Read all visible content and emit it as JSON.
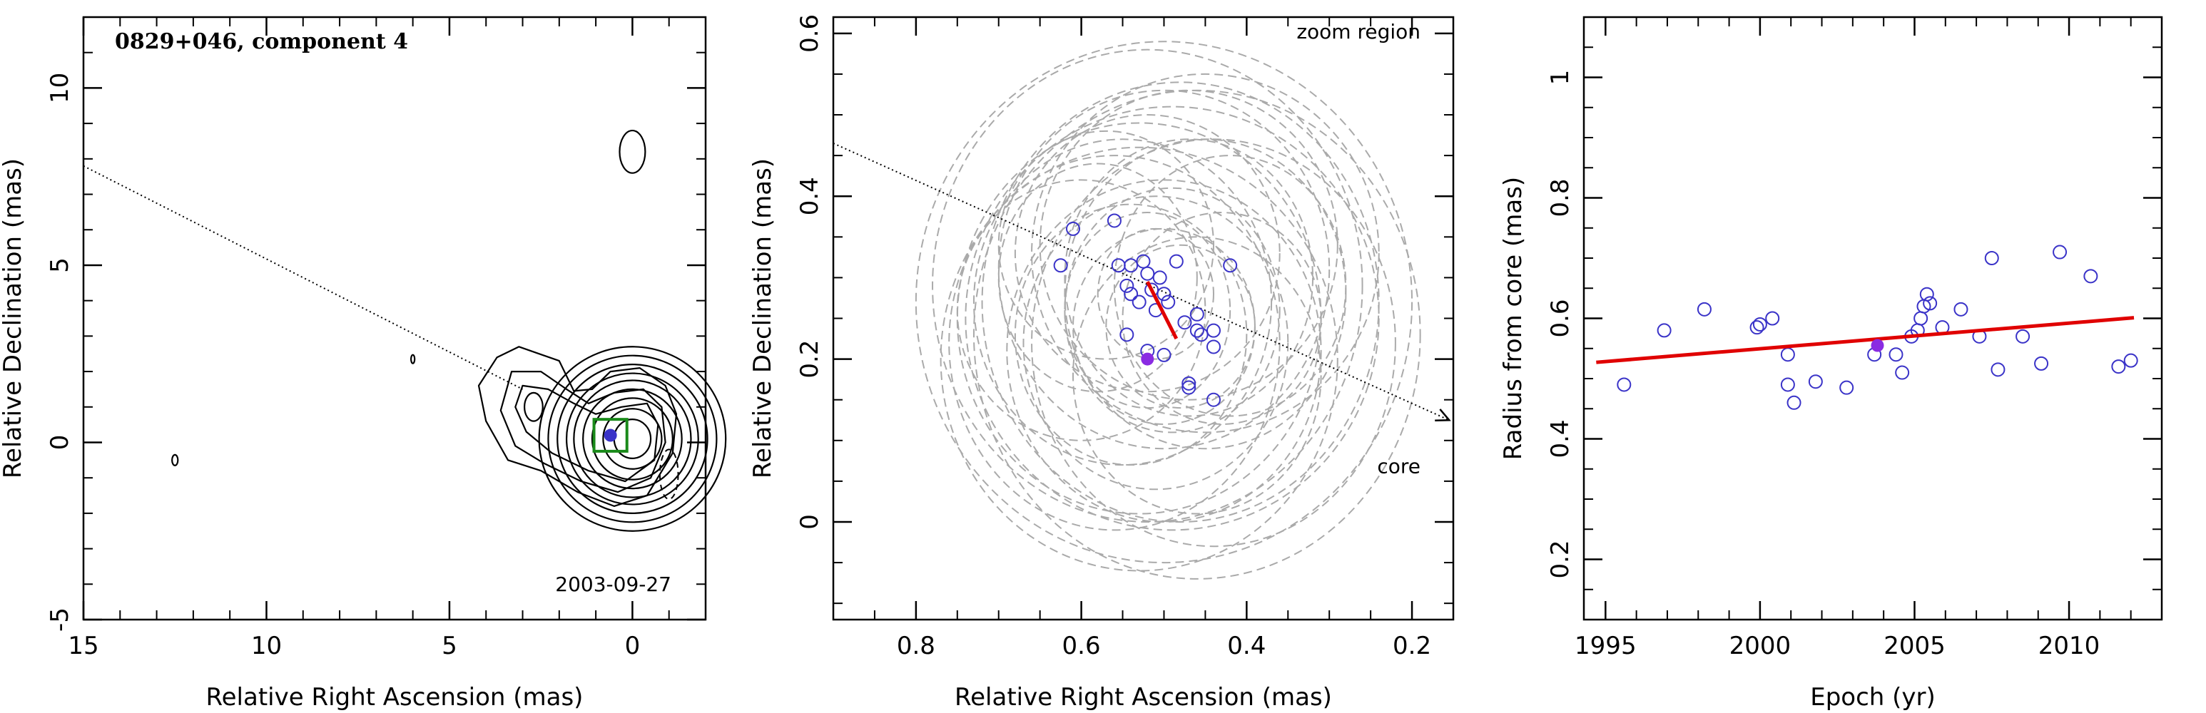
{
  "chart_data": [
    {
      "type": "contour",
      "title": "0829+046, component 4",
      "annotation": "2003-09-27",
      "xlabel": "Relative Right Ascension (mas)",
      "ylabel": "Relative Declination (mas)",
      "xlim": [
        15,
        -2
      ],
      "ylim": [
        -5,
        12
      ],
      "xticks": [
        15,
        10,
        5,
        0
      ],
      "yticks": [
        -5,
        0,
        5,
        10
      ],
      "contours": {
        "main": {
          "center": [
            0.0,
            0.1
          ],
          "levels": [
            [
              0.5,
              0.55
            ],
            [
              0.8,
              0.85
            ],
            [
              1.1,
              1.15
            ],
            [
              1.35,
              1.4
            ],
            [
              1.6,
              1.65
            ],
            [
              1.8,
              1.85
            ],
            [
              2.05,
              2.1
            ],
            [
              2.3,
              2.35
            ],
            [
              2.55,
              2.6
            ]
          ]
        },
        "extended": [
          [
            [
              3.7,
              2.4
            ],
            [
              3.1,
              2.7
            ],
            [
              2.0,
              2.3
            ],
            [
              1.6,
              1.45
            ],
            [
              1.1,
              1.5
            ],
            [
              0.6,
              2.0
            ],
            [
              -0.2,
              2.1
            ],
            [
              -0.9,
              1.6
            ],
            [
              -1.2,
              0.8
            ],
            [
              -1.1,
              -0.3
            ],
            [
              -0.4,
              -1.5
            ],
            [
              0.5,
              -1.8
            ],
            [
              1.5,
              -1.4
            ],
            [
              2.5,
              -0.8
            ],
            [
              3.4,
              -0.5
            ],
            [
              4.0,
              0.6
            ],
            [
              4.2,
              1.6
            ]
          ],
          [
            [
              3.3,
              2.0
            ],
            [
              2.5,
              2.0
            ],
            [
              1.8,
              1.5
            ],
            [
              1.2,
              1.1
            ],
            [
              0.5,
              1.4
            ],
            [
              -0.3,
              1.5
            ],
            [
              -0.8,
              1.0
            ],
            [
              -0.9,
              0.0
            ],
            [
              -0.5,
              -1.0
            ],
            [
              0.4,
              -1.4
            ],
            [
              1.4,
              -1.1
            ],
            [
              2.4,
              -0.6
            ],
            [
              3.2,
              -0.1
            ],
            [
              3.6,
              0.9
            ]
          ],
          [
            [
              3.0,
              1.6
            ],
            [
              2.3,
              1.5
            ],
            [
              1.6,
              1.1
            ],
            [
              1.0,
              0.8
            ],
            [
              0.3,
              1.0
            ],
            [
              -0.4,
              1.1
            ],
            [
              -0.7,
              0.5
            ],
            [
              -0.6,
              -0.5
            ],
            [
              0.2,
              -1.1
            ],
            [
              1.2,
              -0.8
            ],
            [
              2.2,
              -0.3
            ],
            [
              2.9,
              0.3
            ],
            [
              3.2,
              1.0
            ]
          ]
        ],
        "islands": [
          {
            "center": [
              2.7,
              1.0
            ],
            "r": [
              0.25,
              0.4
            ]
          },
          {
            "center": [
              0.0,
              8.2
            ],
            "r": [
              0.35,
              0.6
            ]
          },
          {
            "center": [
              6.0,
              2.35
            ],
            "r": [
              0.05,
              0.12
            ]
          },
          {
            "center": [
              12.5,
              -0.5
            ],
            "r": [
              0.08,
              0.15
            ]
          }
        ],
        "negative": {
          "center": [
            -1.0,
            -0.9
          ],
          "r": [
            0.25,
            0.7
          ]
        }
      },
      "box": {
        "center": [
          0.6,
          0.2
        ],
        "half": [
          0.45,
          0.45
        ]
      },
      "marker": [
        0.6,
        0.2
      ],
      "jet_line": [
        [
          15,
          7.8
        ],
        [
          3.0,
          1.5
        ]
      ],
      "colors": {
        "box": "#1a8a1a",
        "marker": "#3a33c8"
      }
    },
    {
      "type": "scatter",
      "annotation_top": "zoom region",
      "annotation_bottom": "core",
      "xlabel": "Relative Right Ascension (mas)",
      "ylabel": "Relative Declination (mas)",
      "xlim": [
        0.9,
        0.15
      ],
      "ylim": [
        -0.12,
        0.62
      ],
      "xticks": [
        0.8,
        0.6,
        0.4,
        0.2
      ],
      "yticks": [
        0,
        0.2,
        0.4,
        0.6
      ],
      "points": [
        [
          0.61,
          0.36
        ],
        [
          0.56,
          0.37
        ],
        [
          0.625,
          0.315
        ],
        [
          0.555,
          0.315
        ],
        [
          0.54,
          0.315
        ],
        [
          0.525,
          0.32
        ],
        [
          0.485,
          0.32
        ],
        [
          0.52,
          0.305
        ],
        [
          0.505,
          0.3
        ],
        [
          0.545,
          0.29
        ],
        [
          0.515,
          0.285
        ],
        [
          0.54,
          0.28
        ],
        [
          0.5,
          0.28
        ],
        [
          0.53,
          0.27
        ],
        [
          0.495,
          0.27
        ],
        [
          0.51,
          0.26
        ],
        [
          0.475,
          0.245
        ],
        [
          0.46,
          0.255
        ],
        [
          0.46,
          0.235
        ],
        [
          0.44,
          0.235
        ],
        [
          0.545,
          0.23
        ],
        [
          0.455,
          0.23
        ],
        [
          0.44,
          0.215
        ],
        [
          0.52,
          0.21
        ],
        [
          0.5,
          0.205
        ],
        [
          0.47,
          0.17
        ],
        [
          0.47,
          0.165
        ],
        [
          0.44,
          0.15
        ],
        [
          0.42,
          0.315
        ]
      ],
      "highlight": [
        0.52,
        0.2
      ],
      "fit_line": [
        [
          0.52,
          0.295
        ],
        [
          0.485,
          0.225
        ]
      ],
      "ellipses": [
        {
          "c": [
            0.52,
            0.29
          ],
          "r": [
            0.26,
            0.29
          ]
        },
        {
          "c": [
            0.5,
            0.27
          ],
          "r": [
            0.3,
            0.32
          ]
        },
        {
          "c": [
            0.48,
            0.27
          ],
          "r": [
            0.24,
            0.27
          ]
        },
        {
          "c": [
            0.53,
            0.25
          ],
          "r": [
            0.22,
            0.24
          ]
        },
        {
          "c": [
            0.46,
            0.23
          ],
          "r": [
            0.27,
            0.3
          ]
        },
        {
          "c": [
            0.5,
            0.31
          ],
          "r": [
            0.2,
            0.22
          ]
        },
        {
          "c": [
            0.55,
            0.27
          ],
          "r": [
            0.18,
            0.2
          ]
        },
        {
          "c": [
            0.45,
            0.28
          ],
          "r": [
            0.17,
            0.19
          ]
        },
        {
          "c": [
            0.51,
            0.22
          ],
          "r": [
            0.16,
            0.18
          ]
        },
        {
          "c": [
            0.49,
            0.26
          ],
          "r": [
            0.13,
            0.15
          ]
        },
        {
          "c": [
            0.54,
            0.23
          ],
          "r": [
            0.14,
            0.16
          ]
        },
        {
          "c": [
            0.47,
            0.3
          ],
          "r": [
            0.15,
            0.17
          ]
        },
        {
          "c": [
            0.52,
            0.26
          ],
          "r": [
            0.1,
            0.12
          ]
        },
        {
          "c": [
            0.48,
            0.24
          ],
          "r": [
            0.09,
            0.1
          ]
        },
        {
          "c": [
            0.58,
            0.3
          ],
          "r": [
            0.12,
            0.14
          ]
        },
        {
          "c": [
            0.43,
            0.25
          ],
          "r": [
            0.12,
            0.13
          ]
        },
        {
          "c": [
            0.5,
            0.21
          ],
          "r": [
            0.19,
            0.21
          ]
        },
        {
          "c": [
            0.45,
            0.33
          ],
          "r": [
            0.21,
            0.22
          ]
        },
        {
          "c": [
            0.56,
            0.22
          ],
          "r": [
            0.2,
            0.23
          ]
        },
        {
          "c": [
            0.44,
            0.22
          ],
          "r": [
            0.22,
            0.25
          ]
        },
        {
          "c": [
            0.52,
            0.33
          ],
          "r": [
            0.16,
            0.17
          ]
        },
        {
          "c": [
            0.6,
            0.26
          ],
          "r": [
            0.15,
            0.16
          ]
        },
        {
          "c": [
            0.46,
            0.18
          ],
          "r": [
            0.15,
            0.17
          ]
        },
        {
          "c": [
            0.51,
            0.28
          ],
          "r": [
            0.07,
            0.08
          ]
        },
        {
          "c": [
            0.49,
            0.25
          ],
          "r": [
            0.25,
            0.26
          ]
        },
        {
          "c": [
            0.53,
            0.2
          ],
          "r": [
            0.24,
            0.26
          ]
        },
        {
          "c": [
            0.47,
            0.34
          ],
          "r": [
            0.18,
            0.19
          ]
        },
        {
          "c": [
            0.57,
            0.34
          ],
          "r": [
            0.13,
            0.14
          ]
        },
        {
          "c": [
            0.42,
            0.29
          ],
          "r": [
            0.14,
            0.16
          ]
        },
        {
          "c": [
            0.5,
            0.24
          ],
          "r": [
            0.11,
            0.12
          ]
        }
      ],
      "arrow": [
        [
          0.9,
          0.465
        ],
        [
          0.155,
          0.125
        ]
      ],
      "colors": {
        "points": "#3a33c8",
        "highlight": "#8a2be2",
        "fit": "#e00000",
        "ellipses": "#aaaaaa"
      }
    },
    {
      "type": "scatter",
      "xlabel": "Epoch (yr)",
      "ylabel": "Radius from core (mas)",
      "xlim": [
        1994.3,
        2013.0
      ],
      "ylim": [
        0.1,
        1.1
      ],
      "xticks": [
        1995,
        2000,
        2005,
        2010
      ],
      "yticks": [
        0.2,
        0.4,
        0.6,
        0.8,
        1
      ],
      "points": [
        [
          1995.6,
          0.49
        ],
        [
          1996.9,
          0.58
        ],
        [
          1998.2,
          0.615
        ],
        [
          1999.9,
          0.585
        ],
        [
          2000.0,
          0.59
        ],
        [
          2000.4,
          0.6
        ],
        [
          2000.9,
          0.54
        ],
        [
          2000.9,
          0.49
        ],
        [
          2001.1,
          0.46
        ],
        [
          2001.8,
          0.495
        ],
        [
          2002.8,
          0.485
        ],
        [
          2003.7,
          0.54
        ],
        [
          2004.4,
          0.54
        ],
        [
          2004.6,
          0.51
        ],
        [
          2004.9,
          0.57
        ],
        [
          2005.1,
          0.58
        ],
        [
          2005.2,
          0.6
        ],
        [
          2005.3,
          0.62
        ],
        [
          2005.4,
          0.64
        ],
        [
          2005.5,
          0.625
        ],
        [
          2005.9,
          0.585
        ],
        [
          2006.5,
          0.615
        ],
        [
          2007.1,
          0.57
        ],
        [
          2007.5,
          0.7
        ],
        [
          2007.7,
          0.515
        ],
        [
          2008.5,
          0.57
        ],
        [
          2009.1,
          0.525
        ],
        [
          2009.7,
          0.71
        ],
        [
          2010.7,
          0.67
        ],
        [
          2011.6,
          0.52
        ],
        [
          2012.0,
          0.53
        ]
      ],
      "highlight": [
        2003.8,
        0.555
      ],
      "fit_line": [
        [
          1994.7,
          0.527
        ],
        [
          2012.1,
          0.601
        ]
      ],
      "colors": {
        "points": "#3a33c8",
        "highlight": "#8a2be2",
        "fit": "#e00000"
      }
    }
  ]
}
